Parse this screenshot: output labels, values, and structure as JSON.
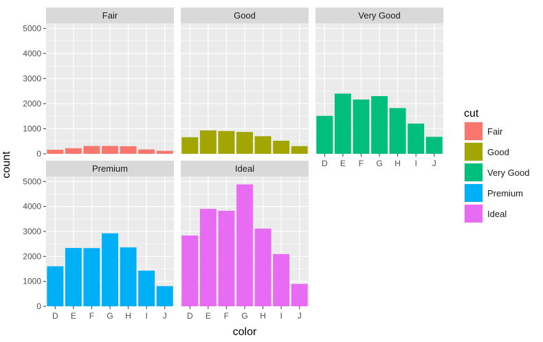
{
  "chart_data": {
    "type": "bar",
    "facet_by": "cut",
    "categories": [
      "D",
      "E",
      "F",
      "G",
      "H",
      "I",
      "J"
    ],
    "xlabel": "color",
    "ylabel": "count",
    "ylim": [
      0,
      5200
    ],
    "yticks": [
      0,
      1000,
      2000,
      3000,
      4000,
      5000
    ],
    "grid": true,
    "legend": {
      "title": "cut",
      "placement": "right",
      "entries": [
        "Fair",
        "Good",
        "Very Good",
        "Premium",
        "Ideal"
      ]
    },
    "series": [
      {
        "name": "Fair",
        "color": "#F8766D",
        "values": [
          163,
          224,
          312,
          314,
          303,
          175,
          119
        ]
      },
      {
        "name": "Good",
        "color": "#A3A500",
        "values": [
          662,
          933,
          909,
          871,
          702,
          522,
          307
        ]
      },
      {
        "name": "Very Good",
        "color": "#00BF7D",
        "values": [
          1513,
          2400,
          2164,
          2299,
          1824,
          1204,
          678
        ]
      },
      {
        "name": "Premium",
        "color": "#00B0F6",
        "values": [
          1603,
          2337,
          2331,
          2924,
          2360,
          1428,
          808
        ]
      },
      {
        "name": "Ideal",
        "color": "#E76BF3",
        "values": [
          2834,
          3903,
          3826,
          4884,
          3115,
          2093,
          896
        ]
      }
    ]
  }
}
